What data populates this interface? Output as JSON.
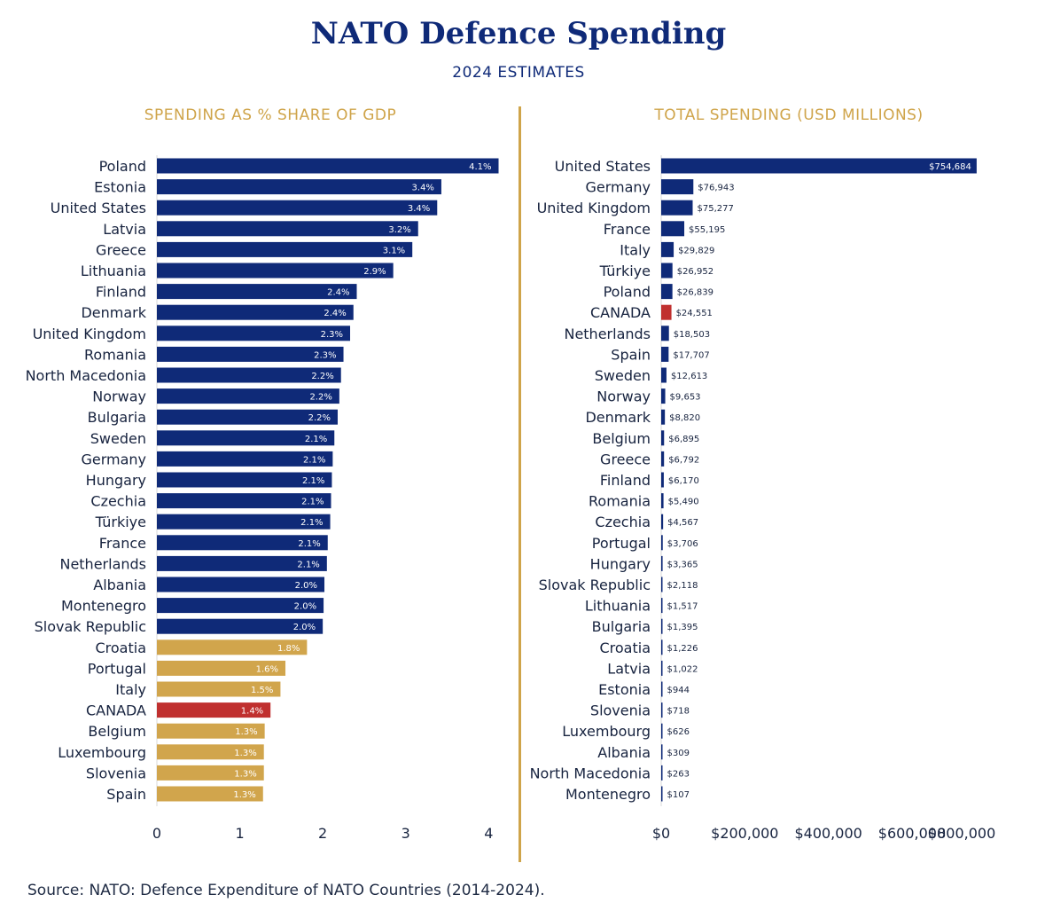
{
  "title": "NATO Defence Spending",
  "subtitle": "2024 ESTIMATES",
  "source": "Source: NATO: Defence Expenditure of NATO Countries (2014-2024).",
  "colors": {
    "navy": "#0f2a78",
    "gold": "#d1a54c",
    "red": "#c0302f",
    "divider": "#cfa44a"
  },
  "chart_data": [
    {
      "type": "bar",
      "orientation": "horizontal",
      "title": "SPENDING AS % SHARE OF GDP",
      "xlim": [
        0,
        4.2
      ],
      "ticks": [
        "0",
        "1",
        "2",
        "3",
        "4"
      ],
      "categories": [
        "Poland",
        "Estonia",
        "United States",
        "Latvia",
        "Greece",
        "Lithuania",
        "Finland",
        "Denmark",
        "United Kingdom",
        "Romania",
        "North Macedonia",
        "Norway",
        "Bulgaria",
        "Sweden",
        "Germany",
        "Hungary",
        "Czechia",
        "Türkiye",
        "France",
        "Netherlands",
        "Albania",
        "Montenegro",
        "Slovak Republic",
        "Croatia",
        "Portugal",
        "Italy",
        "CANADA",
        "Belgium",
        "Luxembourg",
        "Slovenia",
        "Spain"
      ],
      "values": [
        4.12,
        3.43,
        3.38,
        3.15,
        3.08,
        2.85,
        2.41,
        2.37,
        2.33,
        2.25,
        2.22,
        2.2,
        2.18,
        2.14,
        2.12,
        2.11,
        2.1,
        2.09,
        2.06,
        2.05,
        2.02,
        2.01,
        2.0,
        1.81,
        1.55,
        1.49,
        1.37,
        1.3,
        1.29,
        1.29,
        1.28
      ],
      "value_labels": [
        "4.1%",
        "3.4%",
        "3.4%",
        "3.2%",
        "3.1%",
        "2.9%",
        "2.4%",
        "2.4%",
        "2.3%",
        "2.3%",
        "2.2%",
        "2.2%",
        "2.2%",
        "2.1%",
        "2.1%",
        "2.1%",
        "2.1%",
        "2.1%",
        "2.1%",
        "2.1%",
        "2.0%",
        "2.0%",
        "2.0%",
        "1.8%",
        "1.6%",
        "1.5%",
        "1.4%",
        "1.3%",
        "1.3%",
        "1.3%",
        "1.3%"
      ],
      "bar_colors": [
        "navy",
        "navy",
        "navy",
        "navy",
        "navy",
        "navy",
        "navy",
        "navy",
        "navy",
        "navy",
        "navy",
        "navy",
        "navy",
        "navy",
        "navy",
        "navy",
        "navy",
        "navy",
        "navy",
        "navy",
        "navy",
        "navy",
        "navy",
        "gold",
        "gold",
        "gold",
        "red",
        "gold",
        "gold",
        "gold",
        "gold"
      ]
    },
    {
      "type": "bar",
      "orientation": "horizontal",
      "title": "TOTAL SPENDING (USD MILLIONS)",
      "xlim": [
        0,
        880000
      ],
      "ticks": [
        "$0",
        "$200,000",
        "$400,000",
        "$600,000",
        "$800,000"
      ],
      "categories": [
        "United States",
        "Germany",
        "United Kingdom",
        "France",
        "Italy",
        "Türkiye",
        "Poland",
        "CANADA",
        "Netherlands",
        "Spain",
        "Sweden",
        "Norway",
        "Denmark",
        "Belgium",
        "Greece",
        "Finland",
        "Romania",
        "Czechia",
        "Portugal",
        "Hungary",
        "Slovak Republic",
        "Lithuania",
        "Bulgaria",
        "Croatia",
        "Latvia",
        "Estonia",
        "Slovenia",
        "Luxembourg",
        "Albania",
        "North Macedonia",
        "Montenegro"
      ],
      "values": [
        754684,
        76943,
        75277,
        55195,
        29829,
        26952,
        26839,
        24551,
        18503,
        17707,
        12613,
        9653,
        8820,
        6895,
        6792,
        6170,
        5490,
        4567,
        3706,
        3365,
        2118,
        1517,
        1395,
        1226,
        1022,
        944,
        718,
        626,
        309,
        263,
        107
      ],
      "value_labels": [
        "$754,684",
        "$76,943",
        "$75,277",
        "$55,195",
        "$29,829",
        "$26,952",
        "$26,839",
        "$24,551",
        "$18,503",
        "$17,707",
        "$12,613",
        "$9,653",
        "$8,820",
        "$6,895",
        "$6,792",
        "$6,170",
        "$5,490",
        "$4,567",
        "$3,706",
        "$3,365",
        "$2,118",
        "$1,517",
        "$1,395",
        "$1,226",
        "$1,022",
        "$944",
        "$718",
        "$626",
        "$309",
        "$263",
        "$107"
      ],
      "bar_colors": [
        "navy",
        "navy",
        "navy",
        "navy",
        "navy",
        "navy",
        "navy",
        "red",
        "navy",
        "navy",
        "navy",
        "navy",
        "navy",
        "navy",
        "navy",
        "navy",
        "navy",
        "navy",
        "navy",
        "navy",
        "navy",
        "navy",
        "navy",
        "navy",
        "navy",
        "navy",
        "navy",
        "navy",
        "navy",
        "navy",
        "navy"
      ]
    }
  ]
}
